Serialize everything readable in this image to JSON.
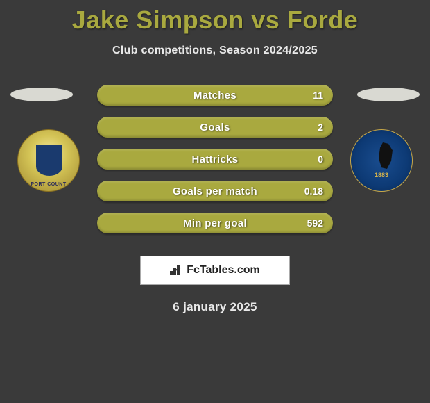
{
  "title": "Jake Simpson vs Forde",
  "subtitle": "Club competitions, Season 2024/2025",
  "accent_color": "#a9a93f",
  "bar_fill_color": "#a9a93f",
  "bar_bg_color": "#7f7f30",
  "page_bg": "#3a3a3a",
  "text_color": "#e8e8e8",
  "left_team": "Stockport County",
  "right_team": "Bristol Rovers",
  "stats": [
    {
      "label": "Matches",
      "value": "11",
      "fill_pct": 100
    },
    {
      "label": "Goals",
      "value": "2",
      "fill_pct": 100
    },
    {
      "label": "Hattricks",
      "value": "0",
      "fill_pct": 100
    },
    {
      "label": "Goals per match",
      "value": "0.18",
      "fill_pct": 100
    },
    {
      "label": "Min per goal",
      "value": "592",
      "fill_pct": 100
    }
  ],
  "brand": "FcTables.com",
  "date": "6 january 2025"
}
